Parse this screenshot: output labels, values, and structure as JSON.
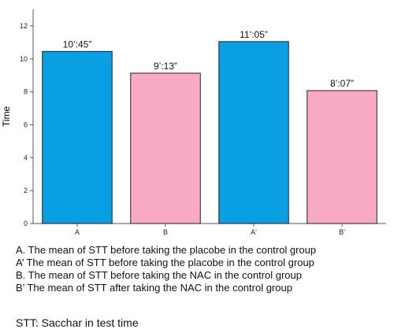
{
  "chart_data": {
    "type": "bar",
    "ylabel": "Time",
    "ylim": [
      0,
      13
    ],
    "yticks": [
      0,
      2,
      4,
      6,
      8,
      10,
      12
    ],
    "grid": false,
    "categories": [
      "A",
      "B",
      "A'",
      "B'"
    ],
    "values": [
      10.45,
      9.13,
      11.05,
      8.07
    ],
    "data_labels": [
      "10’:45”",
      "9’:13”",
      "11’:05”",
      "8’:07”"
    ],
    "bar_colors": [
      "#0a9ee2",
      "#f7a9c6",
      "#0a9ee2",
      "#f7a9c6"
    ]
  },
  "legend": {
    "lines": [
      "A. The mean of STT before taking the placobe in the control group",
      "A’ The mean of STT before taking the placobe in the control group",
      "B. The mean of STT before taking the NAC in the control group",
      "B’ The mean of STT after taking the NAC in the control group"
    ]
  },
  "footnote": "STT: Sacchar in test time"
}
